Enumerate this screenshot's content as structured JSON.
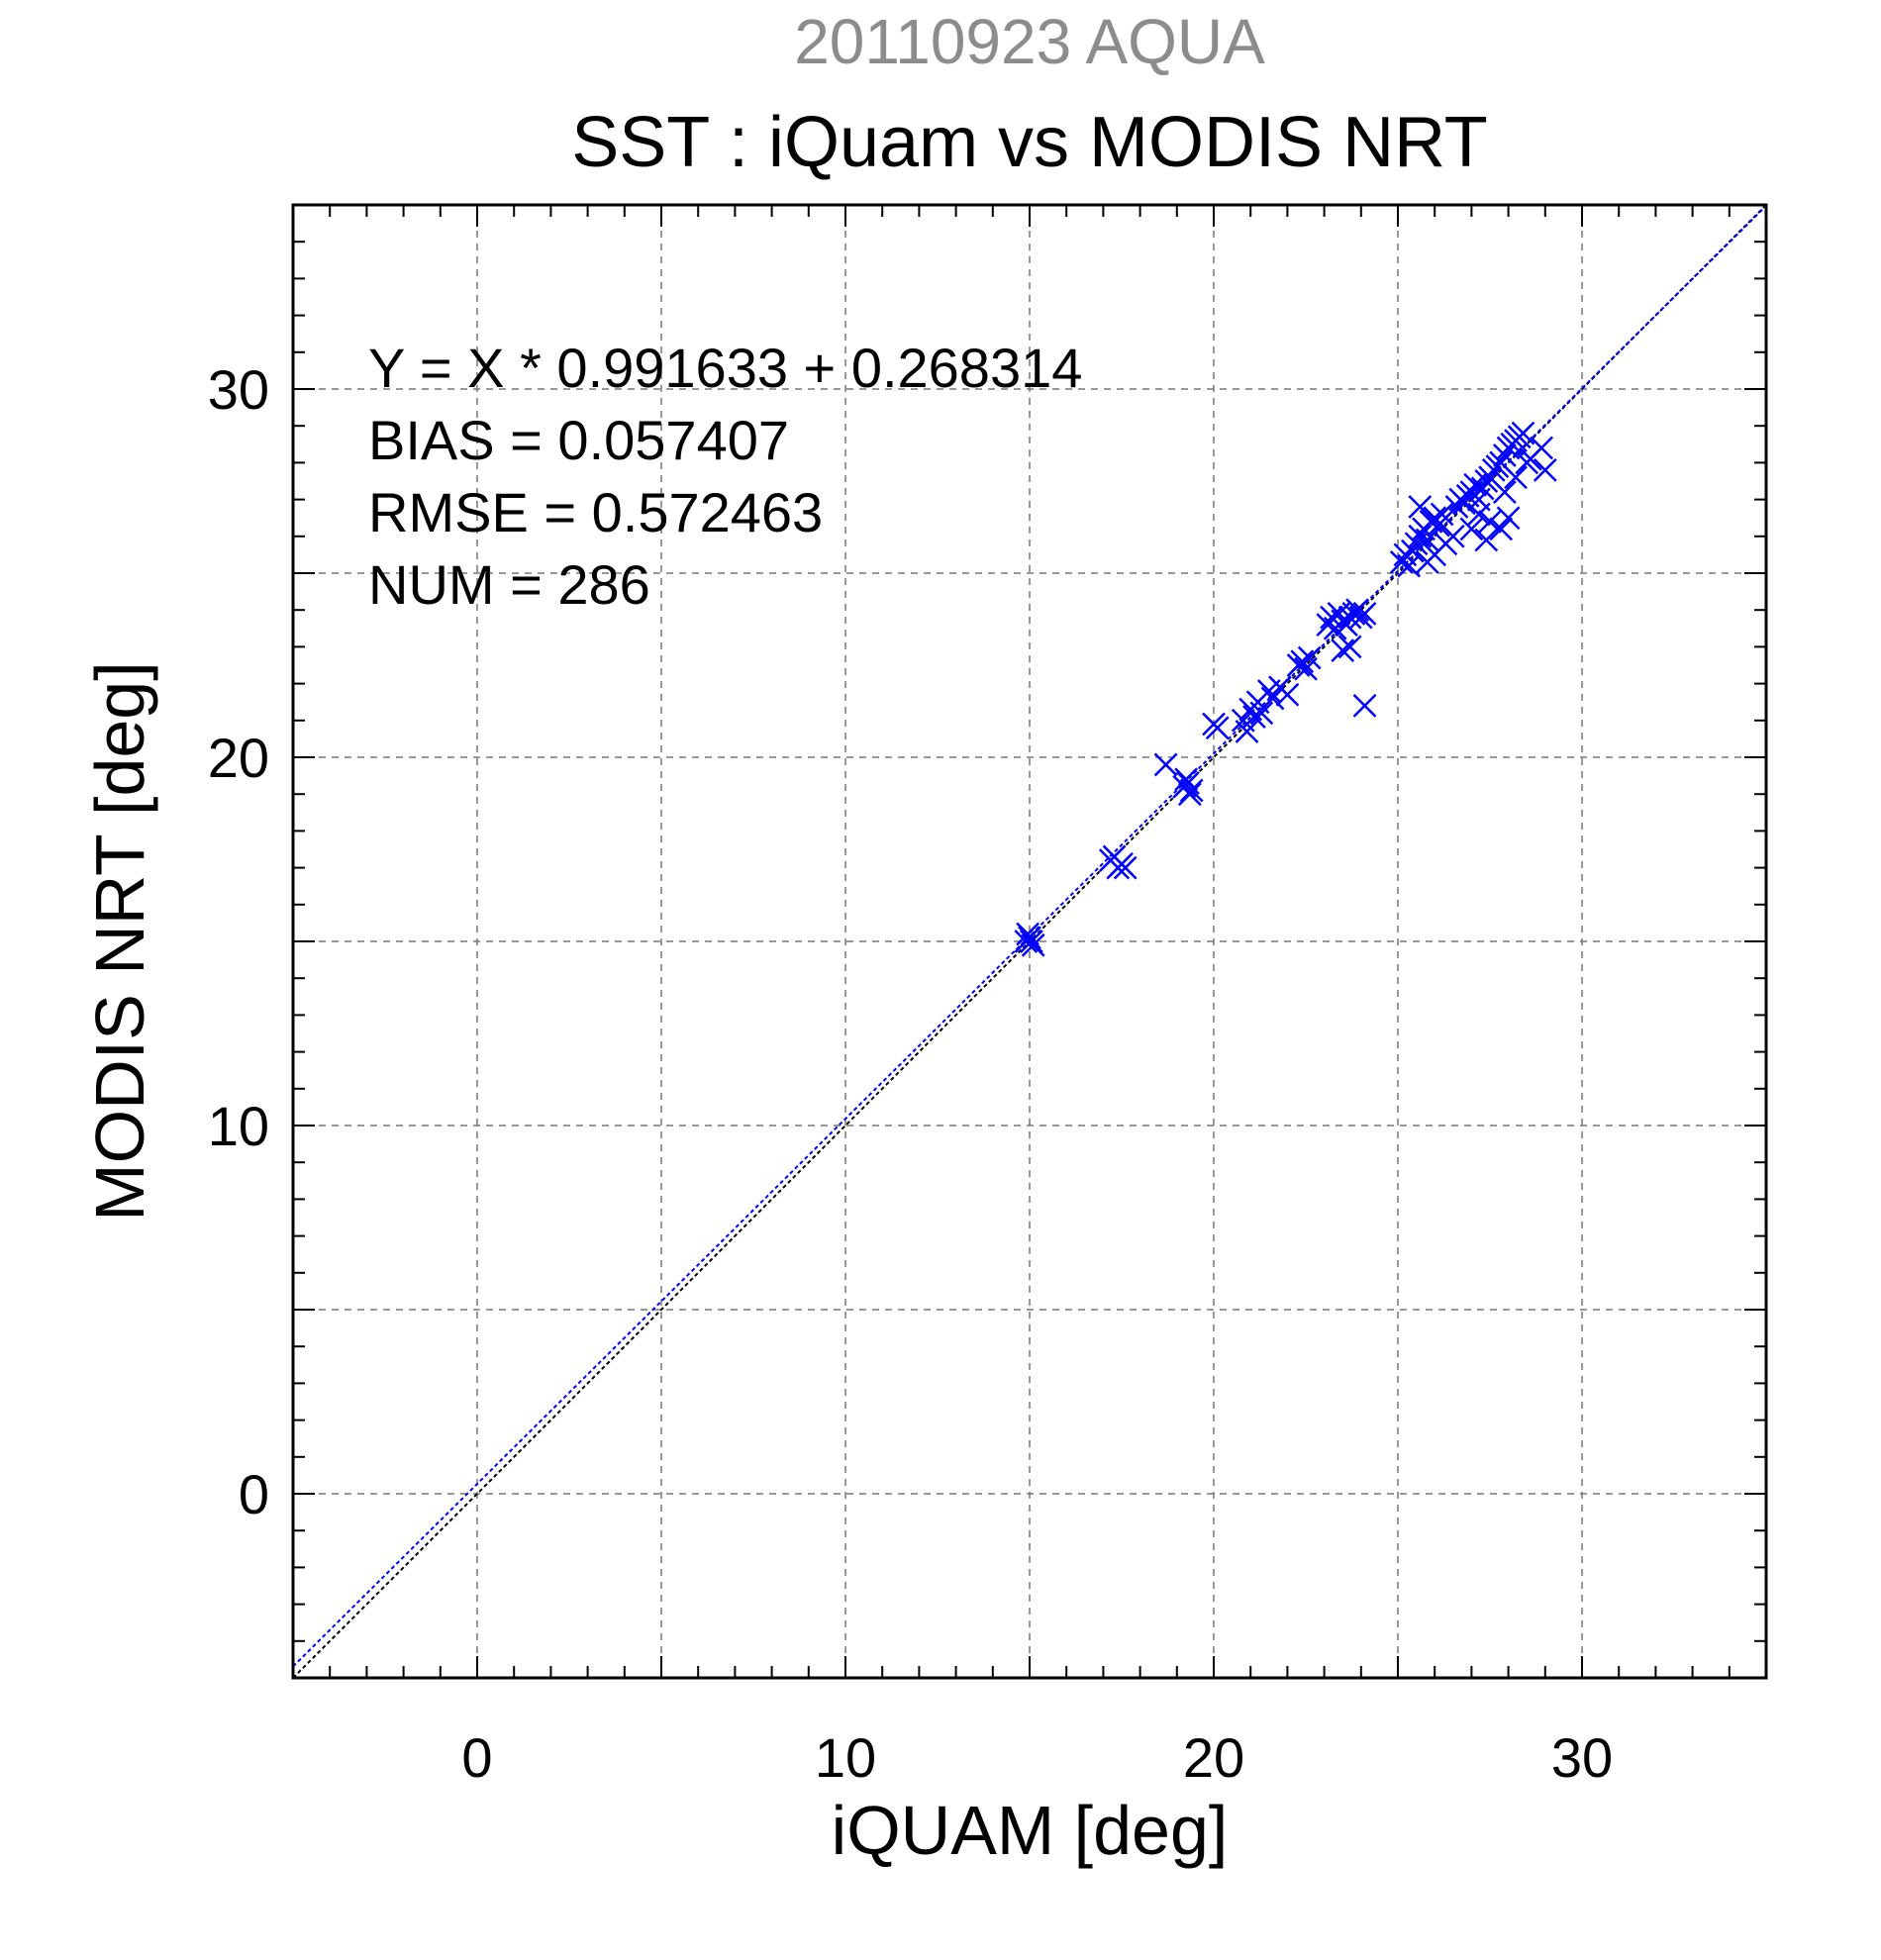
{
  "chart_data": {
    "type": "scatter",
    "supertitle": "20110923 AQUA",
    "title": "SST : iQuam vs MODIS NRT",
    "xlabel": "iQUAM [deg]",
    "ylabel": "MODIS NRT [deg]",
    "xlim": [
      -5,
      35
    ],
    "ylim": [
      -5,
      35
    ],
    "xticks": [
      0,
      10,
      20,
      30
    ],
    "yticks": [
      0,
      10,
      20,
      30
    ],
    "xtick_labels": [
      "0",
      "10",
      "20",
      "30"
    ],
    "ytick_labels": [
      "0",
      "10",
      "20",
      "30"
    ],
    "grid": true,
    "annotations": [
      "Y = X * 0.991633 + 0.268314",
      "BIAS = 0.057407",
      "RMSE = 0.572463",
      "NUM = 286"
    ],
    "lines": [
      {
        "kind": "one-to-one",
        "slope": 1,
        "intercept": 0,
        "color": "#000000"
      },
      {
        "kind": "regression",
        "slope": 0.991633,
        "intercept": 0.268314,
        "color": "#0000ff"
      }
    ],
    "marker": "x",
    "marker_color": "#0000ff",
    "series": [
      {
        "x": [
          14.9,
          15.0,
          15.1,
          14.95,
          15.05,
          17.2,
          17.4,
          17.5,
          17.3,
          17.6,
          18.7,
          19.2,
          19.3,
          19.4,
          19.25,
          19.35,
          20.0,
          20.1,
          20.8,
          20.9,
          21.0,
          21.1,
          21.2,
          21.3,
          21.5,
          21.6,
          21.8,
          22.0,
          22.3,
          22.4,
          22.5,
          22.6,
          23.1,
          23.2,
          23.3,
          23.4,
          23.5,
          23.6,
          23.7,
          23.8,
          23.9,
          24.0,
          24.1,
          23.5,
          23.7,
          24.1,
          25.1,
          25.2,
          25.3,
          25.4,
          25.5,
          25.6,
          25.7,
          25.8,
          25.9,
          26.0,
          26.1,
          26.2,
          25.6,
          25.8,
          26.0,
          26.3,
          26.6,
          26.7,
          26.8,
          26.9,
          27.0,
          27.1,
          27.2,
          27.3,
          27.4,
          27.5,
          27.6,
          27.7,
          27.8,
          27.9,
          28.0,
          28.1,
          28.2,
          28.3,
          28.4,
          27.2,
          27.5,
          27.8,
          28.0,
          28.9,
          29.0,
          28.6,
          26.5,
          27.0,
          27.4,
          27.9,
          28.2,
          28.5
        ],
        "y": [
          15.0,
          15.1,
          14.9,
          15.2,
          15.0,
          17.2,
          17.0,
          17.1,
          17.3,
          17.0,
          19.8,
          19.2,
          19.3,
          19.1,
          19.4,
          19.0,
          20.9,
          20.8,
          21.0,
          20.7,
          21.3,
          21.1,
          21.5,
          21.2,
          21.8,
          21.6,
          21.9,
          21.7,
          22.5,
          22.6,
          22.4,
          22.7,
          23.6,
          23.8,
          23.5,
          23.9,
          23.7,
          23.6,
          23.8,
          23.9,
          24.0,
          23.8,
          23.9,
          22.9,
          23.0,
          21.4,
          25.3,
          25.5,
          25.2,
          25.6,
          25.8,
          26.0,
          26.2,
          25.9,
          26.4,
          26.5,
          26.3,
          26.6,
          26.8,
          25.3,
          25.5,
          25.8,
          26.8,
          27.0,
          26.9,
          27.1,
          27.2,
          27.4,
          27.0,
          27.3,
          27.5,
          27.6,
          27.8,
          27.9,
          28.0,
          28.2,
          28.4,
          28.5,
          28.6,
          28.7,
          28.8,
          26.6,
          26.4,
          26.2,
          26.5,
          28.4,
          27.8,
          28.1,
          26.0,
          26.2,
          25.9,
          27.2,
          27.6,
          28.0
        ]
      }
    ]
  }
}
